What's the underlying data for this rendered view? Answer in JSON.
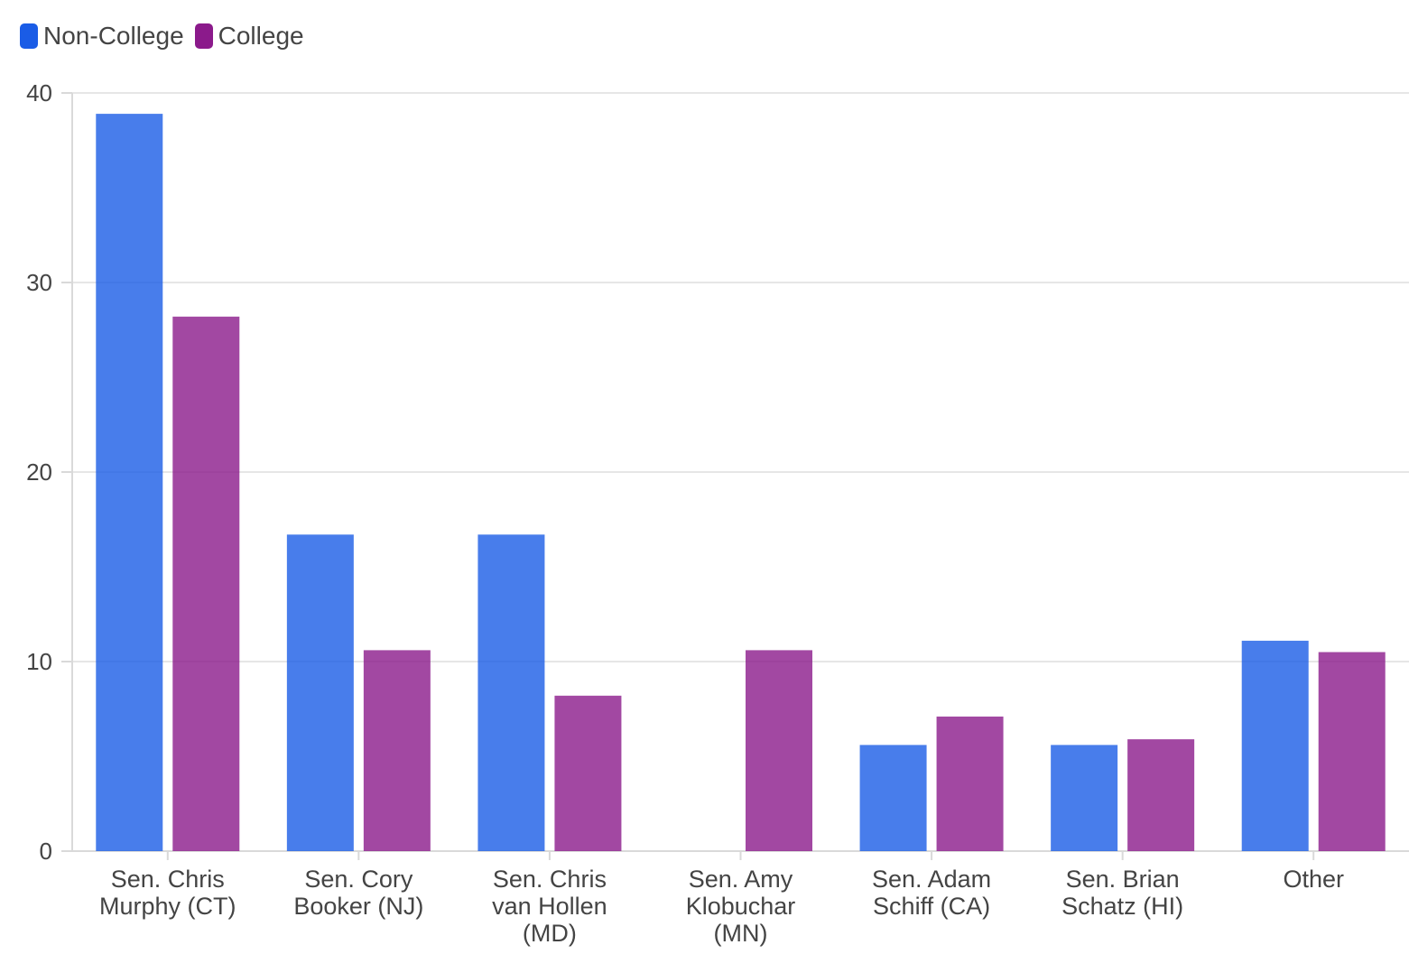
{
  "chart_data": {
    "type": "bar",
    "title": "",
    "xlabel": "",
    "ylabel": "",
    "ylim": [
      0,
      40
    ],
    "yticks": [
      0,
      10,
      20,
      30,
      40
    ],
    "grid": true,
    "legend_position": "top-left",
    "categories": [
      [
        "Sen. Chris",
        "Murphy (CT)"
      ],
      [
        "Sen. Cory",
        "Booker (NJ)"
      ],
      [
        "Sen. Chris",
        "van Hollen",
        "(MD)"
      ],
      [
        "Sen. Amy",
        "Klobuchar",
        "(MN)"
      ],
      [
        "Sen. Adam",
        "Schiff (CA)"
      ],
      [
        "Sen. Brian",
        "Schatz (HI)"
      ],
      [
        "Other"
      ]
    ],
    "series": [
      {
        "name": "Non-College",
        "color": "#1a5ce6",
        "values": [
          38.9,
          16.7,
          16.7,
          0,
          5.6,
          5.6,
          11.1
        ]
      },
      {
        "name": "College",
        "color": "#8b1a8b",
        "values": [
          28.2,
          10.6,
          8.2,
          10.6,
          7.1,
          5.9,
          10.5
        ]
      }
    ]
  }
}
